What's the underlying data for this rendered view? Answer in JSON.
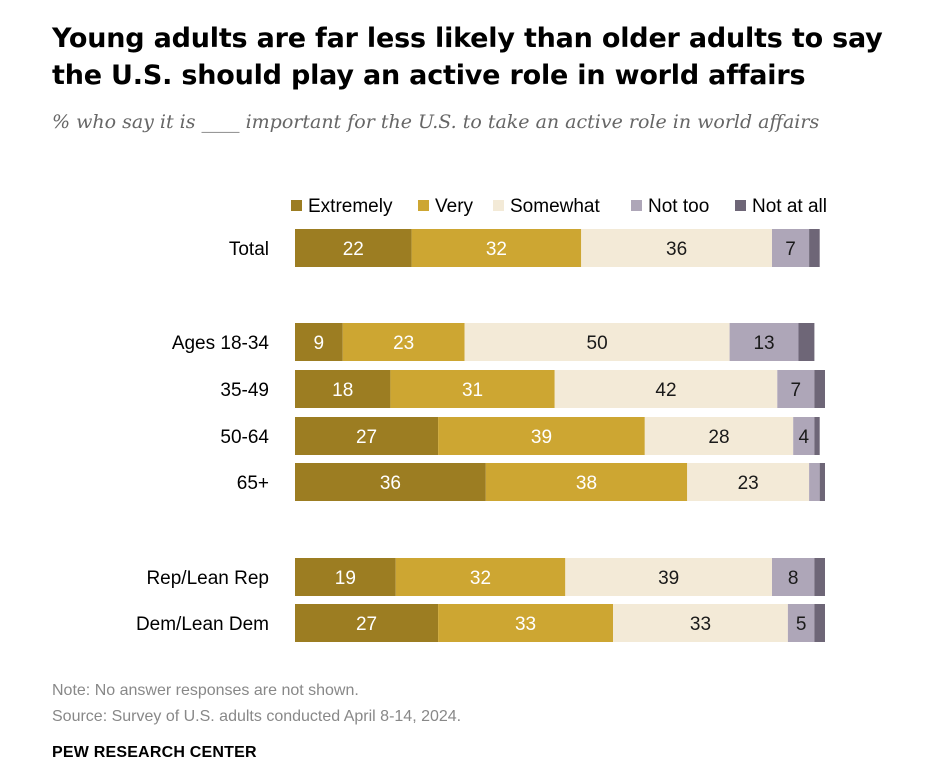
{
  "title": "Young adults are far less likely than older adults to say the U.S. should play an active role in world affairs",
  "subtitle": "% who say it is ____ important for the U.S. to take an active role in world affairs",
  "note": "Note: No answer responses are not shown.",
  "source": "Source: Survey of U.S. adults conducted April 8-14, 2024.",
  "credit": "PEW RESEARCH CENTER",
  "colors": {
    "extremely": "#9c7d22",
    "very": "#cda632",
    "somewhat": "#f3ead7",
    "not_too": "#aea6b8",
    "not_at_all": "#6e6677",
    "label_dark_bg": "#ffffff",
    "label_light_bg": "#1a1a1a"
  },
  "chart_data": {
    "type": "bar",
    "orientation": "horizontal",
    "stacked": true,
    "categories": [
      "Total",
      "Ages 18-34",
      "35-49",
      "50-64",
      "65+",
      "Rep/Lean Rep",
      "Dem/Lean Dem"
    ],
    "groups": [
      [
        "Total"
      ],
      [
        "Ages 18-34",
        "35-49",
        "50-64",
        "65+"
      ],
      [
        "Rep/Lean Rep",
        "Dem/Lean Dem"
      ]
    ],
    "series": [
      {
        "name": "Extremely",
        "color": "#9c7d22",
        "values": [
          22,
          9,
          18,
          27,
          36,
          19,
          27
        ],
        "labels": [
          "22",
          "9",
          "18",
          "27",
          "36",
          "19",
          "27"
        ]
      },
      {
        "name": "Very",
        "color": "#cda632",
        "values": [
          32,
          23,
          31,
          39,
          38,
          32,
          33
        ],
        "labels": [
          "32",
          "23",
          "31",
          "39",
          "38",
          "32",
          "33"
        ]
      },
      {
        "name": "Somewhat",
        "color": "#f3ead7",
        "values": [
          36,
          50,
          42,
          28,
          23,
          39,
          33
        ],
        "labels": [
          "36",
          "50",
          "42",
          "28",
          "23",
          "39",
          "33"
        ]
      },
      {
        "name": "Not too",
        "color": "#aea6b8",
        "values": [
          7,
          13,
          7,
          4,
          2,
          8,
          5
        ],
        "labels": [
          "7",
          "13",
          "7",
          "4",
          "",
          "8",
          "5"
        ]
      },
      {
        "name": "Not at all",
        "color": "#6e6677",
        "values": [
          2,
          3,
          2,
          1,
          1,
          2,
          2
        ],
        "labels": [
          "",
          "",
          "",
          "",
          "",
          "",
          ""
        ]
      }
    ],
    "legend_position": "top",
    "grid": false
  }
}
